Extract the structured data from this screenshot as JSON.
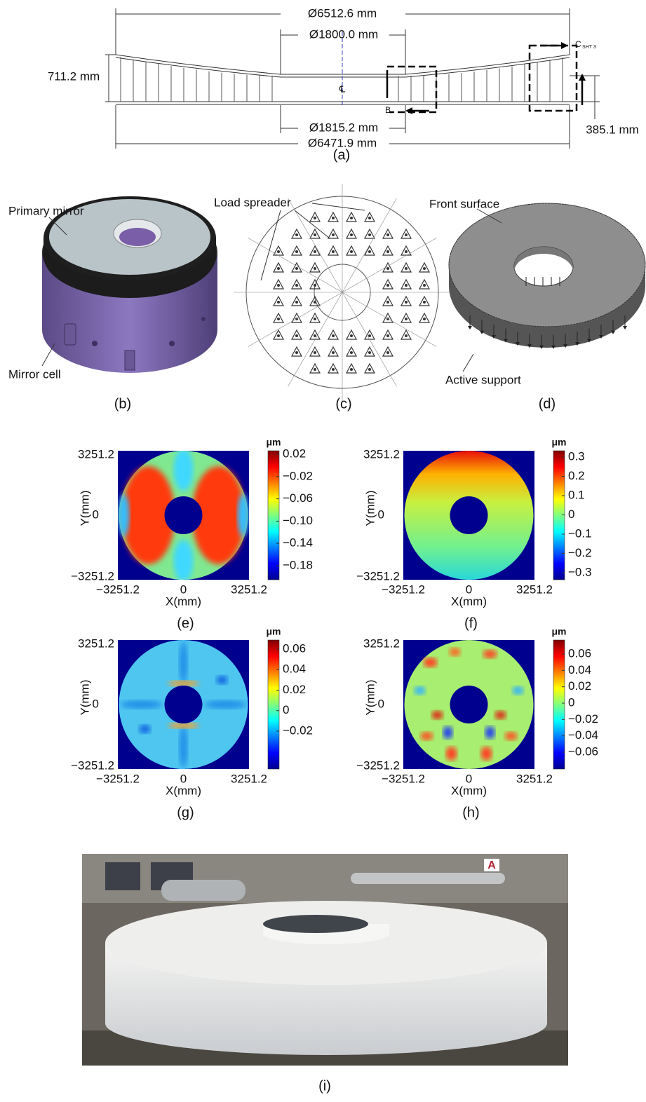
{
  "panel_a": {
    "outer_top": "Ø6512.6 mm",
    "inner_top": "Ø1800.0 mm",
    "height": "711.2 mm",
    "inner_bottom": "Ø1815.2 mm",
    "outer_bottom": "Ø6471.9 mm",
    "edge_height": "385.1 mm",
    "section_b": "B",
    "section_c": "C",
    "section_c_sheet": "SHT 3",
    "centerline": "℄",
    "label": "(a)"
  },
  "panel_b": {
    "callouts": [
      "Primary mirror",
      "Mirror cell"
    ],
    "label": "(b)"
  },
  "panel_c": {
    "callouts": [
      "Load spreader"
    ],
    "label": "(c)"
  },
  "panel_d": {
    "callouts": [
      "Front surface",
      "Active support"
    ],
    "label": "(d)"
  },
  "maps": [
    {
      "label": "(e)",
      "unit": "μm",
      "colorbar_ticks": [
        "0.02",
        "−0.02",
        "−0.06",
        "−0.10",
        "−0.14",
        "−0.18"
      ],
      "yticks": [
        "3251.2",
        "0",
        "−3251.2"
      ],
      "xticks": [
        "−3251.2",
        "0",
        "3251.2"
      ],
      "xlabel": "X(mm)",
      "ylabel": "Y(mm)"
    },
    {
      "label": "(f)",
      "unit": "μm",
      "colorbar_ticks": [
        "0.3",
        "0.2",
        "0.1",
        "0",
        "−0.1",
        "−0.2",
        "−0.3"
      ],
      "yticks": [
        "3251.2",
        "0",
        "−3251.2"
      ],
      "xticks": [
        "−3251.2",
        "0",
        "3251.2"
      ],
      "xlabel": "X(mm)",
      "ylabel": "Y(mm)"
    },
    {
      "label": "(g)",
      "unit": "μm",
      "colorbar_ticks": [
        "0.06",
        "0.04",
        "0.02",
        "0",
        "−0.02"
      ],
      "yticks": [
        "3251.2",
        "0",
        "−3251.2"
      ],
      "xticks": [
        "−3251.2",
        "0",
        "3251.2"
      ],
      "xlabel": "X(mm)",
      "ylabel": "Y(mm)"
    },
    {
      "label": "(h)",
      "unit": "μm",
      "colorbar_ticks": [
        "0.06",
        "0.04",
        "0.02",
        "0",
        "−0.02",
        "−0.04",
        "−0.06"
      ],
      "yticks": [
        "3251.2",
        "0",
        "−3251.2"
      ],
      "xticks": [
        "−3251.2",
        "0",
        "3251.2"
      ],
      "xlabel": "X(mm)",
      "ylabel": "Y(mm)"
    }
  ],
  "panel_i": {
    "label": "(i)"
  }
}
